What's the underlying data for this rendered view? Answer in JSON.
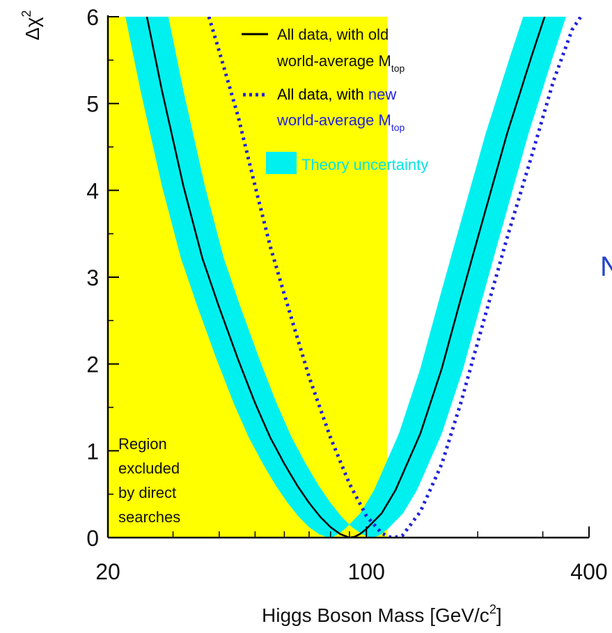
{
  "chart_data": {
    "type": "line",
    "xlabel": "Higgs Boson Mass [GeV/c",
    "xlabel_sup": "2",
    "xlabel_close": "]",
    "ylabel": "Δχ",
    "ylabel_sup": "2",
    "x_scale": "log",
    "xlim": [
      20,
      400
    ],
    "ylim": [
      0,
      6
    ],
    "x_ticks": [
      {
        "value": 20,
        "label": "20"
      },
      {
        "value": 100,
        "label": "100"
      },
      {
        "value": 400,
        "label": "400"
      }
    ],
    "x_minor_ticks": [
      30,
      40,
      50,
      60,
      70,
      80,
      90,
      200,
      300
    ],
    "y_ticks": [
      {
        "value": 0,
        "label": "0"
      },
      {
        "value": 1,
        "label": "1"
      },
      {
        "value": 2,
        "label": "2"
      },
      {
        "value": 3,
        "label": "3"
      },
      {
        "value": 4,
        "label": "4"
      },
      {
        "value": 5,
        "label": "5"
      },
      {
        "value": 6,
        "label": "6"
      }
    ],
    "y_minor_step": 0.5,
    "excluded_region": {
      "x_range": [
        20,
        114
      ],
      "color": "#ffff00",
      "label_lines": [
        "Region",
        "excluded",
        "by direct",
        "searches"
      ]
    },
    "series": [
      {
        "name": "All data, with old world-average M",
        "name_line1": "All data, with old",
        "name_line2": "world-average M",
        "name_sub": "top",
        "style": "solid",
        "color": "#000000",
        "x": [
          25.5,
          28,
          32,
          36,
          40,
          45,
          50,
          55,
          60,
          65,
          70,
          75,
          80,
          85,
          90,
          93,
          96,
          100,
          110,
          120,
          140,
          160,
          180,
          200,
          240,
          280,
          320,
          330
        ],
        "y": [
          6,
          5.15,
          4.05,
          3.22,
          2.65,
          2.05,
          1.55,
          1.15,
          0.85,
          0.6,
          0.4,
          0.24,
          0.12,
          0.04,
          0.0,
          0.01,
          0.04,
          0.1,
          0.28,
          0.55,
          1.2,
          1.95,
          2.75,
          3.45,
          4.65,
          5.55,
          6.3,
          6.5
        ]
      },
      {
        "name": "All data, with new world-average M",
        "name_line1": "All data, with new",
        "name_line2": "world-average M",
        "name_sub": "top",
        "style": "dotted",
        "color": "#2222dd",
        "x": [
          37.5,
          40,
          45,
          50,
          55,
          60,
          70,
          80,
          90,
          100,
          110,
          115,
          118,
          125,
          140,
          160,
          180,
          200,
          240,
          280,
          320,
          360,
          380
        ],
        "y": [
          6,
          5.6,
          4.85,
          4.05,
          3.35,
          2.8,
          1.85,
          1.15,
          0.62,
          0.25,
          0.05,
          0.01,
          0.0,
          0.02,
          0.3,
          0.85,
          1.55,
          2.25,
          3.45,
          4.4,
          5.25,
          5.85,
          6.0
        ]
      }
    ],
    "band": {
      "name": "Theory uncertainty",
      "color": "#00f0f0",
      "half_width_log10": 0.058
    },
    "legend": {
      "placement": "top-right",
      "label_color_old": "#000000",
      "label_color_new_prefix": "#000000",
      "label_color_new_word": "#2222dd",
      "label_color_band": "#00e5e5"
    }
  },
  "edge_glyph": "N"
}
